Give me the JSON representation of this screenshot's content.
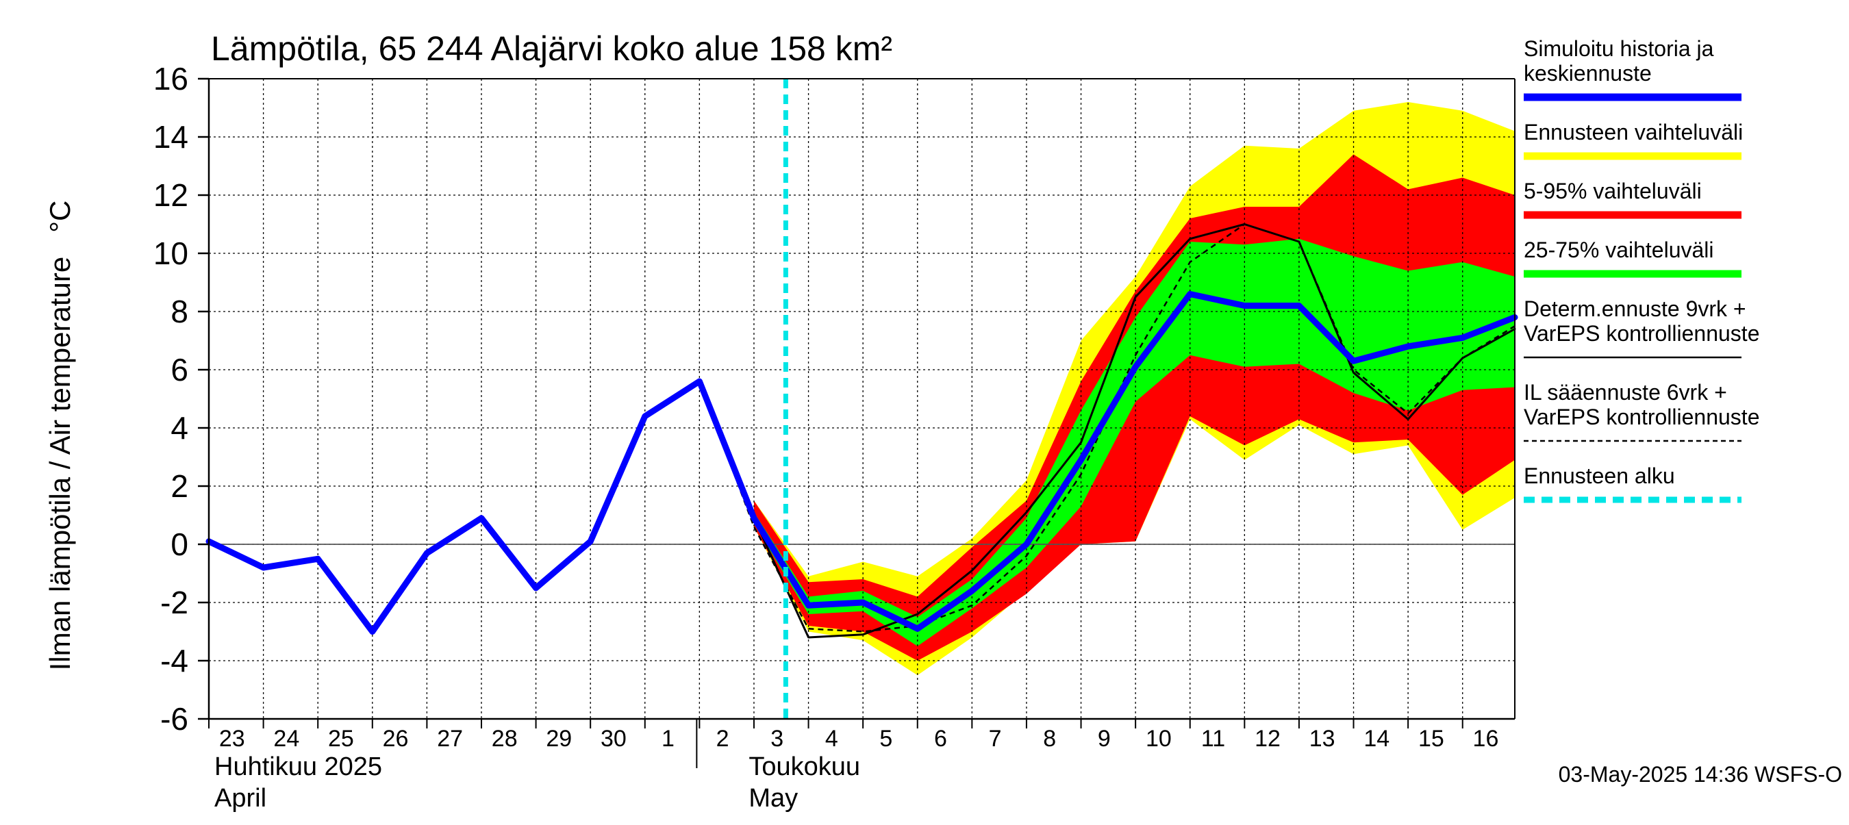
{
  "chart_data": {
    "type": "area",
    "title": "Lämpötila, 65 244 Alajärvi koko alue 158 km²",
    "ylabel": "Ilman lämpötila / Air temperature   °C",
    "ylim": [
      -6,
      16
    ],
    "yticks": [
      -6,
      -4,
      -2,
      0,
      2,
      4,
      6,
      8,
      10,
      12,
      14,
      16
    ],
    "xlim": [
      "2025-04-23",
      "2025-05-16 23:00"
    ],
    "x_tick_labels": [
      "23",
      "24",
      "25",
      "26",
      "27",
      "28",
      "29",
      "30",
      "1",
      "2",
      "3",
      "4",
      "5",
      "6",
      "7",
      "8",
      "9",
      "10",
      "11",
      "12",
      "13",
      "14",
      "15",
      "16"
    ],
    "x_days": [
      "2025-04-23",
      "2025-04-24",
      "2025-04-25",
      "2025-04-26",
      "2025-04-27",
      "2025-04-28",
      "2025-04-29",
      "2025-04-30",
      "2025-05-01",
      "2025-05-02",
      "2025-05-03",
      "2025-05-04",
      "2025-05-05",
      "2025-05-06",
      "2025-05-07",
      "2025-05-08",
      "2025-05-09",
      "2025-05-10",
      "2025-05-11",
      "2025-05-12",
      "2025-05-13",
      "2025-05-14",
      "2025-05-15",
      "2025-05-16"
    ],
    "month_labels": [
      {
        "line1": "Huhtikuu  2025",
        "line2": "April",
        "start": "2025-04-23"
      },
      {
        "line1": "Toukokuu",
        "line2": "May",
        "start": "2025-05-02"
      }
    ],
    "forecast_start": "2025-05-03 14:36",
    "series": [
      {
        "name": "Simuloitu historia ja keskiennuste",
        "kind": "line",
        "color": "#0000ff",
        "width": 9,
        "dash": "",
        "points": [
          [
            "2025-04-23",
            0.1
          ],
          [
            "2025-04-24",
            -0.8
          ],
          [
            "2025-04-25",
            -0.5
          ],
          [
            "2025-04-26",
            -3.0
          ],
          [
            "2025-04-27",
            -0.3
          ],
          [
            "2025-04-28",
            0.9
          ],
          [
            "2025-04-29",
            -1.5
          ],
          [
            "2025-04-30",
            0.1
          ],
          [
            "2025-05-01",
            4.4
          ],
          [
            "2025-05-02",
            5.6
          ],
          [
            "2025-05-03",
            0.9
          ],
          [
            "2025-05-04",
            -2.1
          ],
          [
            "2025-05-05",
            -2.0
          ],
          [
            "2025-05-06",
            -2.9
          ],
          [
            "2025-05-07",
            -1.6
          ],
          [
            "2025-05-08",
            0.0
          ],
          [
            "2025-05-09",
            2.9
          ],
          [
            "2025-05-10",
            6.1
          ],
          [
            "2025-05-11",
            8.6
          ],
          [
            "2025-05-12",
            8.2
          ],
          [
            "2025-05-13",
            8.2
          ],
          [
            "2025-05-14",
            6.3
          ],
          [
            "2025-05-15",
            6.8
          ],
          [
            "2025-05-16",
            7.1
          ],
          [
            "2025-05-16 23:00",
            7.8
          ]
        ]
      },
      {
        "name": "Determ.ennuste 9vrk + VarEPS kontrolliennuste",
        "kind": "line",
        "color": "#000000",
        "width": 3,
        "dash": "",
        "points": [
          [
            "2025-05-01",
            4.4
          ],
          [
            "2025-05-02",
            5.6
          ],
          [
            "2025-05-03",
            0.9
          ],
          [
            "2025-05-04",
            -3.2
          ],
          [
            "2025-05-05",
            -3.1
          ],
          [
            "2025-05-06",
            -2.4
          ],
          [
            "2025-05-07",
            -0.9
          ],
          [
            "2025-05-08",
            1.1
          ],
          [
            "2025-05-09",
            3.5
          ],
          [
            "2025-05-10",
            8.5
          ],
          [
            "2025-05-11",
            10.5
          ],
          [
            "2025-05-12",
            11.0
          ],
          [
            "2025-05-13",
            10.4
          ],
          [
            "2025-05-14",
            5.9
          ],
          [
            "2025-05-15",
            4.3
          ],
          [
            "2025-05-16",
            6.4
          ],
          [
            "2025-05-16 23:00",
            7.4
          ]
        ]
      },
      {
        "name": "IL sääennuste 6vrk + VarEPS kontrolliennuste",
        "kind": "line",
        "color": "#000000",
        "width": 2.5,
        "dash": "8,6",
        "points": [
          [
            "2025-05-01",
            4.4
          ],
          [
            "2025-05-02",
            5.6
          ],
          [
            "2025-05-03",
            0.6
          ],
          [
            "2025-05-04",
            -2.9
          ],
          [
            "2025-05-05",
            -3.0
          ],
          [
            "2025-05-06",
            -2.8
          ],
          [
            "2025-05-07",
            -2.1
          ],
          [
            "2025-05-08",
            -0.4
          ],
          [
            "2025-05-09",
            2.4
          ],
          [
            "2025-05-10",
            6.5
          ],
          [
            "2025-05-11",
            9.7
          ],
          [
            "2025-05-12",
            11.0
          ],
          [
            "2025-05-13",
            10.4
          ],
          [
            "2025-05-14",
            6.0
          ],
          [
            "2025-05-15",
            4.5
          ],
          [
            "2025-05-16",
            6.4
          ],
          [
            "2025-05-16 23:00",
            7.5
          ]
        ]
      }
    ],
    "bands": [
      {
        "name": "Ennusteen vaihteluväli",
        "color": "#ffff00",
        "x": [
          "2025-05-03",
          "2025-05-04",
          "2025-05-05",
          "2025-05-06",
          "2025-05-07",
          "2025-05-08",
          "2025-05-09",
          "2025-05-10",
          "2025-05-11",
          "2025-05-12",
          "2025-05-13",
          "2025-05-14",
          "2025-05-15",
          "2025-05-16",
          "2025-05-16 23:00"
        ],
        "low": [
          0.6,
          -3.0,
          -3.3,
          -4.5,
          -3.2,
          -1.6,
          0.0,
          0.1,
          4.3,
          2.9,
          4.1,
          3.1,
          3.4,
          0.5,
          1.6
        ],
        "high": [
          1.5,
          -1.1,
          -0.6,
          -1.1,
          0.2,
          2.2,
          7.0,
          9.2,
          12.3,
          13.7,
          13.6,
          14.9,
          15.2,
          14.9,
          14.2
        ]
      },
      {
        "name": "5-95% vaihteluväli",
        "color": "#ff0000",
        "x": [
          "2025-05-03",
          "2025-05-04",
          "2025-05-05",
          "2025-05-06",
          "2025-05-07",
          "2025-05-08",
          "2025-05-09",
          "2025-05-10",
          "2025-05-11",
          "2025-05-12",
          "2025-05-13",
          "2025-05-14",
          "2025-05-15",
          "2025-05-16",
          "2025-05-16 23:00"
        ],
        "low": [
          0.6,
          -2.8,
          -3.0,
          -4.0,
          -3.0,
          -1.7,
          0.0,
          0.1,
          4.4,
          3.4,
          4.3,
          3.5,
          3.6,
          1.7,
          2.9
        ],
        "high": [
          1.5,
          -1.3,
          -1.2,
          -1.8,
          -0.1,
          1.5,
          5.6,
          8.7,
          11.2,
          11.6,
          11.6,
          13.4,
          12.2,
          12.6,
          12.0
        ]
      },
      {
        "name": "25-75% vaihteluväli",
        "color": "#00ff00",
        "x": [
          "2025-05-03",
          "2025-05-04",
          "2025-05-05",
          "2025-05-06",
          "2025-05-07",
          "2025-05-08",
          "2025-05-09",
          "2025-05-10",
          "2025-05-11",
          "2025-05-12",
          "2025-05-13",
          "2025-05-14",
          "2025-05-15",
          "2025-05-16",
          "2025-05-16 23:00"
        ],
        "low": [
          0.7,
          -2.4,
          -2.3,
          -3.5,
          -2.2,
          -0.8,
          1.3,
          4.9,
          6.5,
          6.1,
          6.2,
          5.2,
          4.6,
          5.3,
          5.4
        ],
        "high": [
          1.1,
          -1.8,
          -1.6,
          -2.5,
          -1.2,
          0.9,
          4.6,
          7.8,
          10.4,
          10.3,
          10.5,
          9.9,
          9.4,
          9.7,
          9.2
        ]
      }
    ],
    "legend": {
      "placement": "right",
      "entries": [
        {
          "label_lines": [
            "Simuloitu historia ja",
            "keskiennuste"
          ],
          "color": "#0000ff",
          "style": "thick"
        },
        {
          "label_lines": [
            "Ennusteen vaihteluväli"
          ],
          "color": "#ffff00",
          "style": "thick"
        },
        {
          "label_lines": [
            "5-95% vaihteluväli"
          ],
          "color": "#ff0000",
          "style": "thick"
        },
        {
          "label_lines": [
            "25-75% vaihteluväli"
          ],
          "color": "#00ff00",
          "style": "thick"
        },
        {
          "label_lines": [
            "Determ.ennuste 9vrk +",
            "VarEPS kontrolliennuste"
          ],
          "color": "#000000",
          "style": "thin"
        },
        {
          "label_lines": [
            "IL sääennuste 6vrk  +",
            "  VarEPS kontrolliennuste"
          ],
          "color": "#000000",
          "style": "dashed"
        },
        {
          "label_lines": [
            "Ennusteen alku"
          ],
          "color": "#00e5e5",
          "style": "thick-dashed"
        }
      ]
    },
    "grid": true,
    "footer": "03-May-2025 14:36 WSFS-O"
  }
}
